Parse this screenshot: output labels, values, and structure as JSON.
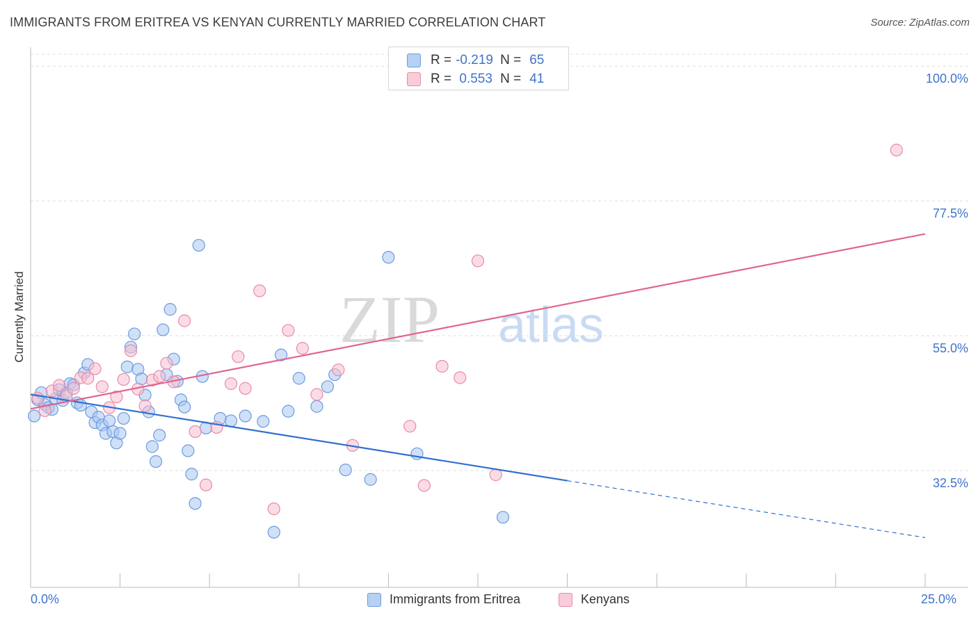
{
  "title": "IMMIGRANTS FROM ERITREA VS KENYAN CURRENTLY MARRIED CORRELATION CHART",
  "source": "Source: ZipAtlas.com",
  "colors": {
    "series_blue_fill": "#a9c7f0",
    "series_blue_stroke": "#6b9be0",
    "series_blue_line": "#2f6fd0",
    "series_pink_fill": "#f7bfd0",
    "series_pink_stroke": "#e88aa8",
    "series_pink_line": "#e0648f",
    "tick_text": "#3f74c9",
    "grid": "#dddddd"
  },
  "legend_top": {
    "rows": [
      {
        "r_label": "R =",
        "r_value": "-0.219",
        "n_label": "N =",
        "n_value": "65"
      },
      {
        "r_label": "R =",
        "r_value": " 0.553",
        "n_label": "N =",
        "n_value": "41"
      }
    ]
  },
  "watermark": {
    "zip": "ZIP",
    "atlas": "atlas"
  },
  "chart_data": {
    "type": "scatter",
    "title": "IMMIGRANTS FROM ERITREA VS KENYAN CURRENTLY MARRIED CORRELATION CHART",
    "xlabel": "",
    "ylabel": "Currently Married",
    "xlim": [
      0,
      25
    ],
    "ylim": [
      13,
      102
    ],
    "x_tick_labels": [
      "0.0%",
      "25.0%"
    ],
    "y_ticks": [
      32.5,
      55.0,
      77.5,
      100.0
    ],
    "y_tick_labels": [
      "32.5%",
      "55.0%",
      "77.5%",
      "100.0%"
    ],
    "grid": true,
    "legend_position": "bottom",
    "series": [
      {
        "name": "Immigrants from Eritrea",
        "color": "#6b9be0",
        "trend": {
          "x0": 0.0,
          "y0": 45.2,
          "x1": 15.0,
          "y1": 30.8,
          "x_dash_end": 25.0,
          "y_dash_end": 21.3
        },
        "points": [
          [
            0.1,
            41.6
          ],
          [
            0.2,
            44.3
          ],
          [
            0.3,
            45.5
          ],
          [
            0.4,
            43.5
          ],
          [
            0.5,
            43.0
          ],
          [
            0.6,
            42.7
          ],
          [
            0.7,
            44.5
          ],
          [
            0.8,
            46.0
          ],
          [
            0.9,
            44.2
          ],
          [
            1.0,
            45.5
          ],
          [
            1.1,
            47.0
          ],
          [
            1.2,
            46.8
          ],
          [
            1.3,
            43.8
          ],
          [
            1.4,
            43.4
          ],
          [
            1.5,
            48.8
          ],
          [
            1.6,
            50.2
          ],
          [
            1.7,
            42.3
          ],
          [
            1.8,
            40.5
          ],
          [
            1.9,
            41.4
          ],
          [
            2.0,
            40.1
          ],
          [
            2.1,
            38.7
          ],
          [
            2.2,
            40.8
          ],
          [
            2.3,
            39.0
          ],
          [
            2.4,
            37.1
          ],
          [
            2.5,
            38.7
          ],
          [
            2.6,
            41.2
          ],
          [
            2.7,
            49.8
          ],
          [
            2.8,
            53.1
          ],
          [
            2.9,
            55.3
          ],
          [
            3.0,
            49.4
          ],
          [
            3.1,
            47.8
          ],
          [
            3.2,
            45.1
          ],
          [
            3.3,
            42.3
          ],
          [
            3.4,
            36.5
          ],
          [
            3.5,
            34.0
          ],
          [
            3.6,
            38.4
          ],
          [
            3.7,
            56.0
          ],
          [
            3.8,
            48.5
          ],
          [
            3.9,
            59.4
          ],
          [
            4.0,
            51.1
          ],
          [
            4.1,
            47.4
          ],
          [
            4.2,
            44.3
          ],
          [
            4.3,
            43.1
          ],
          [
            4.4,
            35.8
          ],
          [
            4.5,
            31.9
          ],
          [
            4.6,
            27.0
          ],
          [
            4.7,
            70.1
          ],
          [
            4.8,
            48.2
          ],
          [
            4.9,
            39.6
          ],
          [
            5.3,
            41.2
          ],
          [
            5.6,
            40.8
          ],
          [
            6.0,
            41.6
          ],
          [
            6.5,
            40.7
          ],
          [
            6.8,
            22.2
          ],
          [
            7.0,
            51.8
          ],
          [
            7.2,
            42.4
          ],
          [
            7.5,
            47.9
          ],
          [
            8.0,
            43.2
          ],
          [
            8.3,
            46.5
          ],
          [
            8.5,
            48.5
          ],
          [
            8.8,
            32.6
          ],
          [
            9.5,
            31.0
          ],
          [
            10.0,
            68.1
          ],
          [
            10.8,
            35.3
          ],
          [
            13.2,
            24.7
          ]
        ]
      },
      {
        "name": "Kenyans",
        "color": "#e88aa8",
        "trend": {
          "x0": 0.0,
          "y0": 42.8,
          "x1": 25.0,
          "y1": 72.0
        },
        "points": [
          [
            0.2,
            44.6
          ],
          [
            0.4,
            42.5
          ],
          [
            0.6,
            45.8
          ],
          [
            0.8,
            46.7
          ],
          [
            1.0,
            44.9
          ],
          [
            1.2,
            46.2
          ],
          [
            1.4,
            48.0
          ],
          [
            1.6,
            47.9
          ],
          [
            1.8,
            49.5
          ],
          [
            2.0,
            46.5
          ],
          [
            2.2,
            43.0
          ],
          [
            2.4,
            44.8
          ],
          [
            2.6,
            47.7
          ],
          [
            2.8,
            52.5
          ],
          [
            3.0,
            46.1
          ],
          [
            3.2,
            43.3
          ],
          [
            3.4,
            47.6
          ],
          [
            3.6,
            48.2
          ],
          [
            3.8,
            50.4
          ],
          [
            4.0,
            47.3
          ],
          [
            4.3,
            57.5
          ],
          [
            4.6,
            39.0
          ],
          [
            4.9,
            30.1
          ],
          [
            5.2,
            39.7
          ],
          [
            5.6,
            47.0
          ],
          [
            5.8,
            51.5
          ],
          [
            6.0,
            46.2
          ],
          [
            6.4,
            62.5
          ],
          [
            6.8,
            26.1
          ],
          [
            7.2,
            55.9
          ],
          [
            7.6,
            52.9
          ],
          [
            8.0,
            45.2
          ],
          [
            8.6,
            49.3
          ],
          [
            9.0,
            36.7
          ],
          [
            10.6,
            39.9
          ],
          [
            11.0,
            30.0
          ],
          [
            11.5,
            49.9
          ],
          [
            12.0,
            48.0
          ],
          [
            12.5,
            67.5
          ],
          [
            13.0,
            31.8
          ],
          [
            24.2,
            86.0
          ]
        ]
      }
    ]
  },
  "bottom_legend": {
    "items": [
      "Immigrants from Eritrea",
      "Kenyans"
    ]
  }
}
